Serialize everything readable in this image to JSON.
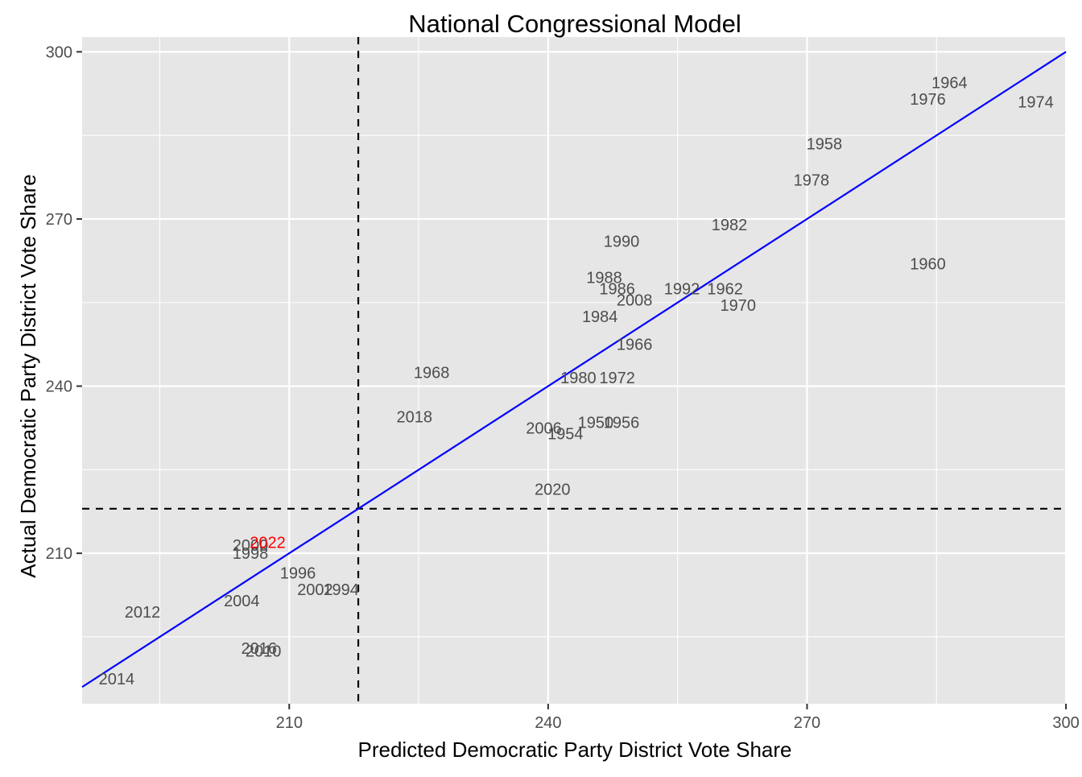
{
  "chart_data": {
    "type": "scatter",
    "title": "National Congressional Model",
    "xlabel": "Predicted Democratic Party District Vote Share",
    "ylabel": "Actual Democratic Party District Vote Share",
    "xlim": [
      186,
      300
    ],
    "ylim": [
      183,
      300
    ],
    "x_ticks": [
      210,
      240,
      270,
      300
    ],
    "y_ticks": [
      210,
      240,
      270,
      300
    ],
    "grid": true,
    "background": "#e6e6e6",
    "reference_lines": {
      "vertical_x": 218,
      "horizontal_y": 218,
      "style": "dashed",
      "color": "#000000"
    },
    "fit_line": {
      "from": [
        186,
        186
      ],
      "to": [
        300,
        300
      ],
      "color": "#0000ff"
    },
    "label_color": "#4d4d4d",
    "highlight_color": "#ff0000",
    "points": [
      {
        "label": "1950",
        "x": 245.5,
        "y": 233.5
      },
      {
        "label": "1954",
        "x": 242.0,
        "y": 231.5
      },
      {
        "label": "1956",
        "x": 248.5,
        "y": 233.5
      },
      {
        "label": "1958",
        "x": 272.0,
        "y": 283.5
      },
      {
        "label": "1960",
        "x": 284.0,
        "y": 262.0
      },
      {
        "label": "1962",
        "x": 260.5,
        "y": 257.5
      },
      {
        "label": "1964",
        "x": 286.5,
        "y": 294.5
      },
      {
        "label": "1966",
        "x": 250.0,
        "y": 247.5
      },
      {
        "label": "1968",
        "x": 226.5,
        "y": 242.5
      },
      {
        "label": "1970",
        "x": 262.0,
        "y": 254.5
      },
      {
        "label": "1972",
        "x": 248.0,
        "y": 241.5
      },
      {
        "label": "1974",
        "x": 296.5,
        "y": 291.0
      },
      {
        "label": "1976",
        "x": 284.0,
        "y": 291.5
      },
      {
        "label": "1978",
        "x": 270.5,
        "y": 277.0
      },
      {
        "label": "1980",
        "x": 243.5,
        "y": 241.5
      },
      {
        "label": "1982",
        "x": 261.0,
        "y": 269.0
      },
      {
        "label": "1984",
        "x": 246.0,
        "y": 252.5
      },
      {
        "label": "1986",
        "x": 248.0,
        "y": 257.5
      },
      {
        "label": "1988",
        "x": 246.5,
        "y": 259.5
      },
      {
        "label": "1990",
        "x": 248.5,
        "y": 266.0
      },
      {
        "label": "1992",
        "x": 255.5,
        "y": 257.5
      },
      {
        "label": "1994",
        "x": 216.0,
        "y": 203.5
      },
      {
        "label": "1996",
        "x": 211.0,
        "y": 206.5
      },
      {
        "label": "1998",
        "x": 205.5,
        "y": 210.0
      },
      {
        "label": "2000",
        "x": 205.5,
        "y": 211.5
      },
      {
        "label": "2002",
        "x": 213.0,
        "y": 203.5
      },
      {
        "label": "2004",
        "x": 204.5,
        "y": 201.5
      },
      {
        "label": "2006",
        "x": 239.5,
        "y": 232.5
      },
      {
        "label": "2008",
        "x": 250.0,
        "y": 255.5
      },
      {
        "label": "2010",
        "x": 207.0,
        "y": 192.5
      },
      {
        "label": "2012",
        "x": 193.0,
        "y": 199.5
      },
      {
        "label": "2014",
        "x": 190.0,
        "y": 187.5
      },
      {
        "label": "2016",
        "x": 206.5,
        "y": 193.0
      },
      {
        "label": "2018",
        "x": 224.5,
        "y": 234.5
      },
      {
        "label": "2020",
        "x": 240.5,
        "y": 221.5
      },
      {
        "label": "2022",
        "x": 207.5,
        "y": 212.0,
        "highlight": true
      }
    ]
  }
}
